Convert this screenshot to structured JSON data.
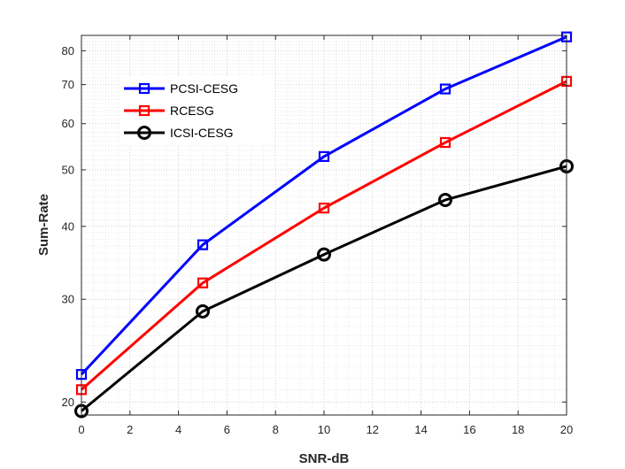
{
  "chart_data": {
    "type": "line",
    "yscale": "log",
    "xlabel": "SNR-dB",
    "ylabel": "Sum-Rate",
    "xlim": [
      0,
      20
    ],
    "ylim": [
      19,
      85
    ],
    "xticks": [
      0,
      2,
      4,
      6,
      8,
      10,
      12,
      14,
      16,
      18,
      20
    ],
    "yticks": [
      20,
      30,
      40,
      50,
      60,
      70,
      80
    ],
    "grid": true,
    "legend_position": "top-left",
    "x": [
      0,
      5,
      10,
      15,
      20
    ],
    "series": [
      {
        "name": "PCSI-CESG",
        "color": "#0000ff",
        "marker": "square",
        "values": [
          22.3,
          37.2,
          52.7,
          68.8,
          84.5
        ]
      },
      {
        "name": "RCESG",
        "color": "#ff0000",
        "marker": "square",
        "values": [
          21.0,
          32.0,
          43.0,
          55.7,
          70.9
        ]
      },
      {
        "name": "ICSI-CESG",
        "color": "#000000",
        "marker": "circle",
        "values": [
          19.3,
          28.6,
          35.8,
          44.4,
          50.7
        ]
      }
    ]
  }
}
